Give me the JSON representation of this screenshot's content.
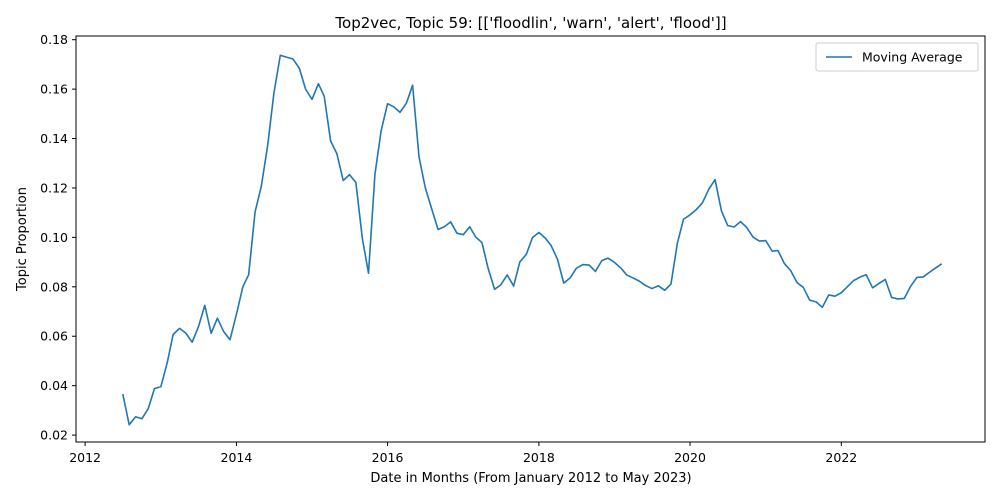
{
  "chart_data": {
    "type": "line",
    "title": "Top2vec, Topic 59: [['floodlin', 'warn', 'alert', 'flood']]",
    "xlabel": "Date in Months (From January 2012 to May 2023)",
    "ylabel": "Topic Proportion",
    "xlim": [
      "2011-11-18",
      "2023-11-26"
    ],
    "ylim": [
      0.0172,
      0.1815
    ],
    "x_ticks": [
      "2012",
      "2014",
      "2016",
      "2018",
      "2020",
      "2022"
    ],
    "y_ticks": [
      "0.02",
      "0.04",
      "0.06",
      "0.08",
      "0.10",
      "0.12",
      "0.14",
      "0.16",
      "0.18"
    ],
    "grid": false,
    "legend_position": "top-right",
    "color": "#1f77b4",
    "series": [
      {
        "name": "Moving Average",
        "points": [
          [
            "2012-07",
            0.0366
          ],
          [
            "2012-08",
            0.0242
          ],
          [
            "2012-09",
            0.0274
          ],
          [
            "2012-10",
            0.0266
          ],
          [
            "2012-11",
            0.0307
          ],
          [
            "2012-12",
            0.0388
          ],
          [
            "2013-01",
            0.0396
          ],
          [
            "2013-02",
            0.0494
          ],
          [
            "2013-03",
            0.0607
          ],
          [
            "2013-04",
            0.0632
          ],
          [
            "2013-05",
            0.0613
          ],
          [
            "2013-06",
            0.0576
          ],
          [
            "2013-07",
            0.0637
          ],
          [
            "2013-08",
            0.0725
          ],
          [
            "2013-09",
            0.0612
          ],
          [
            "2013-10",
            0.0673
          ],
          [
            "2013-11",
            0.0618
          ],
          [
            "2013-12",
            0.0586
          ],
          [
            "2014-01",
            0.0689
          ],
          [
            "2014-02",
            0.08
          ],
          [
            "2014-03",
            0.0849
          ],
          [
            "2014-04",
            0.1103
          ],
          [
            "2014-05",
            0.1206
          ],
          [
            "2014-06",
            0.1373
          ],
          [
            "2014-07",
            0.1584
          ],
          [
            "2014-08",
            0.1737
          ],
          [
            "2014-09",
            0.1729
          ],
          [
            "2014-10",
            0.1722
          ],
          [
            "2014-11",
            0.1684
          ],
          [
            "2014-12",
            0.16
          ],
          [
            "2015-01",
            0.1559
          ],
          [
            "2015-02",
            0.1622
          ],
          [
            "2015-03",
            0.1571
          ],
          [
            "2015-04",
            0.139
          ],
          [
            "2015-05",
            0.1339
          ],
          [
            "2015-06",
            0.123
          ],
          [
            "2015-07",
            0.1254
          ],
          [
            "2015-08",
            0.1222
          ],
          [
            "2015-09",
            0.0997
          ],
          [
            "2015-10",
            0.0855
          ],
          [
            "2015-11",
            0.1255
          ],
          [
            "2015-12",
            0.1432
          ],
          [
            "2016-01",
            0.1541
          ],
          [
            "2016-02",
            0.1528
          ],
          [
            "2016-03",
            0.1506
          ],
          [
            "2016-04",
            0.1543
          ],
          [
            "2016-05",
            0.1616
          ],
          [
            "2016-06",
            0.1326
          ],
          [
            "2016-07",
            0.1202
          ],
          [
            "2016-08",
            0.1116
          ],
          [
            "2016-09",
            0.1032
          ],
          [
            "2016-10",
            0.1043
          ],
          [
            "2016-11",
            0.1063
          ],
          [
            "2016-12",
            0.1017
          ],
          [
            "2017-01",
            0.1011
          ],
          [
            "2017-02",
            0.1043
          ],
          [
            "2017-03",
            0.1002
          ],
          [
            "2017-04",
            0.0979
          ],
          [
            "2017-05",
            0.0874
          ],
          [
            "2017-06",
            0.079
          ],
          [
            "2017-07",
            0.0808
          ],
          [
            "2017-08",
            0.0848
          ],
          [
            "2017-09",
            0.0803
          ],
          [
            "2017-10",
            0.0901
          ],
          [
            "2017-11",
            0.0931
          ],
          [
            "2017-12",
            0.0999
          ],
          [
            "2018-01",
            0.102
          ],
          [
            "2018-02",
            0.0997
          ],
          [
            "2018-03",
            0.0967
          ],
          [
            "2018-04",
            0.0911
          ],
          [
            "2018-05",
            0.0815
          ],
          [
            "2018-06",
            0.0836
          ],
          [
            "2018-07",
            0.0875
          ],
          [
            "2018-08",
            0.089
          ],
          [
            "2018-09",
            0.0888
          ],
          [
            "2018-10",
            0.0862
          ],
          [
            "2018-11",
            0.0906
          ],
          [
            "2018-12",
            0.0916
          ],
          [
            "2019-01",
            0.0899
          ],
          [
            "2019-02",
            0.0876
          ],
          [
            "2019-03",
            0.0848
          ],
          [
            "2019-04",
            0.0836
          ],
          [
            "2019-05",
            0.0823
          ],
          [
            "2019-06",
            0.0805
          ],
          [
            "2019-07",
            0.0793
          ],
          [
            "2019-08",
            0.0804
          ],
          [
            "2019-09",
            0.0786
          ],
          [
            "2019-10",
            0.0811
          ],
          [
            "2019-11",
            0.0977
          ],
          [
            "2019-12",
            0.1074
          ],
          [
            "2020-01",
            0.1091
          ],
          [
            "2020-02",
            0.1113
          ],
          [
            "2020-03",
            0.114
          ],
          [
            "2020-04",
            0.1195
          ],
          [
            "2020-05",
            0.1234
          ],
          [
            "2020-06",
            0.1107
          ],
          [
            "2020-07",
            0.1048
          ],
          [
            "2020-08",
            0.1042
          ],
          [
            "2020-09",
            0.1064
          ],
          [
            "2020-10",
            0.104
          ],
          [
            "2020-11",
            0.1001
          ],
          [
            "2020-12",
            0.0985
          ],
          [
            "2021-01",
            0.0987
          ],
          [
            "2021-02",
            0.0944
          ],
          [
            "2021-03",
            0.0947
          ],
          [
            "2021-04",
            0.0894
          ],
          [
            "2021-05",
            0.0866
          ],
          [
            "2021-06",
            0.0817
          ],
          [
            "2021-07",
            0.0798
          ],
          [
            "2021-08",
            0.0746
          ],
          [
            "2021-09",
            0.0739
          ],
          [
            "2021-10",
            0.0717
          ],
          [
            "2021-11",
            0.0767
          ],
          [
            "2021-12",
            0.0762
          ],
          [
            "2022-01",
            0.0776
          ],
          [
            "2022-02",
            0.0802
          ],
          [
            "2022-03",
            0.0825
          ],
          [
            "2022-04",
            0.0839
          ],
          [
            "2022-05",
            0.0849
          ],
          [
            "2022-06",
            0.0796
          ],
          [
            "2022-07",
            0.0813
          ],
          [
            "2022-08",
            0.083
          ],
          [
            "2022-09",
            0.0757
          ],
          [
            "2022-10",
            0.0751
          ],
          [
            "2022-11",
            0.0753
          ],
          [
            "2022-12",
            0.0801
          ],
          [
            "2023-01",
            0.0838
          ],
          [
            "2023-02",
            0.084
          ],
          [
            "2023-03",
            0.0858
          ],
          [
            "2023-04",
            0.0876
          ],
          [
            "2023-05",
            0.0893
          ]
        ]
      }
    ]
  }
}
